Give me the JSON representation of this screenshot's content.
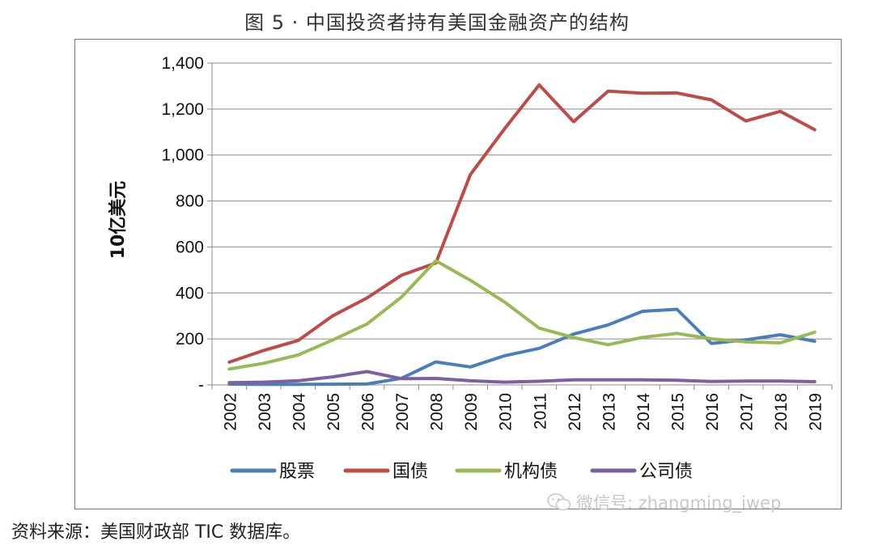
{
  "title": "图 5  · 中国投资者持有美国金融资产的结构",
  "source_note": "资料来源：美国财政部 TIC 数据库。",
  "watermark": "微信号: zhangming_iwep",
  "chart_data": {
    "type": "line",
    "title": "图 5  · 中国投资者持有美国金融资产的结构",
    "xlabel": "",
    "ylabel": "10亿美元",
    "x": [
      "2002",
      "2003",
      "2004",
      "2005",
      "2006",
      "2007",
      "2008",
      "2009",
      "2010",
      "2011",
      "2012",
      "2013",
      "2014",
      "2015",
      "2016",
      "2017",
      "2018",
      "2019"
    ],
    "ylim": [
      0,
      1400
    ],
    "yticks": [
      0,
      200,
      400,
      600,
      800,
      1000,
      1200,
      1400
    ],
    "ytick_labels": [
      "-",
      "200",
      "400",
      "600",
      "800",
      "1,000",
      "1,200",
      "1,400"
    ],
    "grid": "horizontal",
    "legend_position": "bottom",
    "series": [
      {
        "name": "股票",
        "color": "#4a7ebb",
        "values": [
          3,
          2,
          2,
          3,
          4,
          29,
          100,
          78,
          127,
          159,
          221,
          261,
          320,
          329,
          180,
          196,
          218,
          190
        ]
      },
      {
        "name": "国债",
        "color": "#be4b48",
        "values": [
          99,
          150,
          193,
          300,
          378,
          477,
          530,
          915,
          1115,
          1305,
          1145,
          1278,
          1269,
          1270,
          1240,
          1148,
          1190,
          1110
        ]
      },
      {
        "name": "机构债",
        "color": "#98b954",
        "values": [
          69,
          94,
          130,
          195,
          265,
          382,
          540,
          455,
          360,
          247,
          206,
          175,
          207,
          224,
          200,
          187,
          183,
          229
        ]
      },
      {
        "name": "公司债",
        "color": "#7d60a0",
        "values": [
          10,
          12,
          18,
          35,
          58,
          27,
          28,
          18,
          12,
          16,
          22,
          22,
          22,
          20,
          15,
          17,
          17,
          14
        ]
      }
    ]
  }
}
